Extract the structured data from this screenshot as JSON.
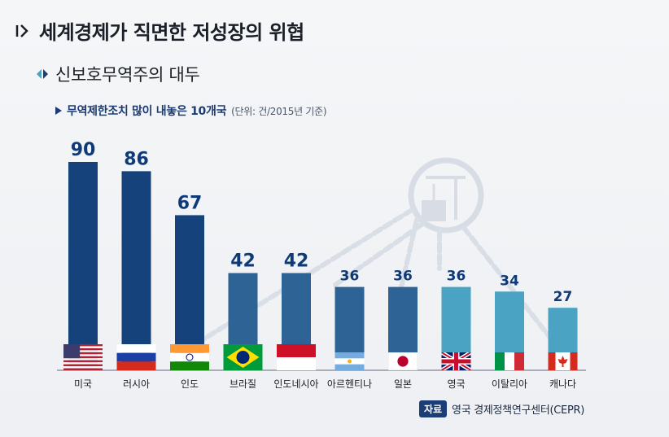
{
  "header": {
    "title": "세계경제가 직면한 저성장의 위협",
    "section": "신보호무역주의 대두",
    "chart_heading": "무역제한조치 많이 내놓은 10개국",
    "unit_note": "(단위: 건/2015년 기준)"
  },
  "source": {
    "label": "자료",
    "text": "영국 경제정책연구센터(CEPR)"
  },
  "colors": {
    "dark_bar": "#15427a",
    "mid_bar": "#2e6396",
    "light_bar": "#4aa3c2",
    "value_text": "#0f3a78"
  },
  "chart_data": {
    "type": "bar",
    "categories": [
      "미국",
      "러시아",
      "인도",
      "브라질",
      "인도네시아",
      "아르헨티나",
      "일본",
      "영국",
      "이탈리아",
      "캐나다"
    ],
    "values": [
      90,
      86,
      67,
      42,
      42,
      36,
      36,
      36,
      34,
      27
    ],
    "flags": [
      "us-flag",
      "russia-flag",
      "india-flag",
      "brazil-flag",
      "indonesia-flag",
      "argentina-flag",
      "japan-flag",
      "uk-flag",
      "italy-flag",
      "canada-flag"
    ],
    "ylim": [
      0,
      90
    ]
  }
}
